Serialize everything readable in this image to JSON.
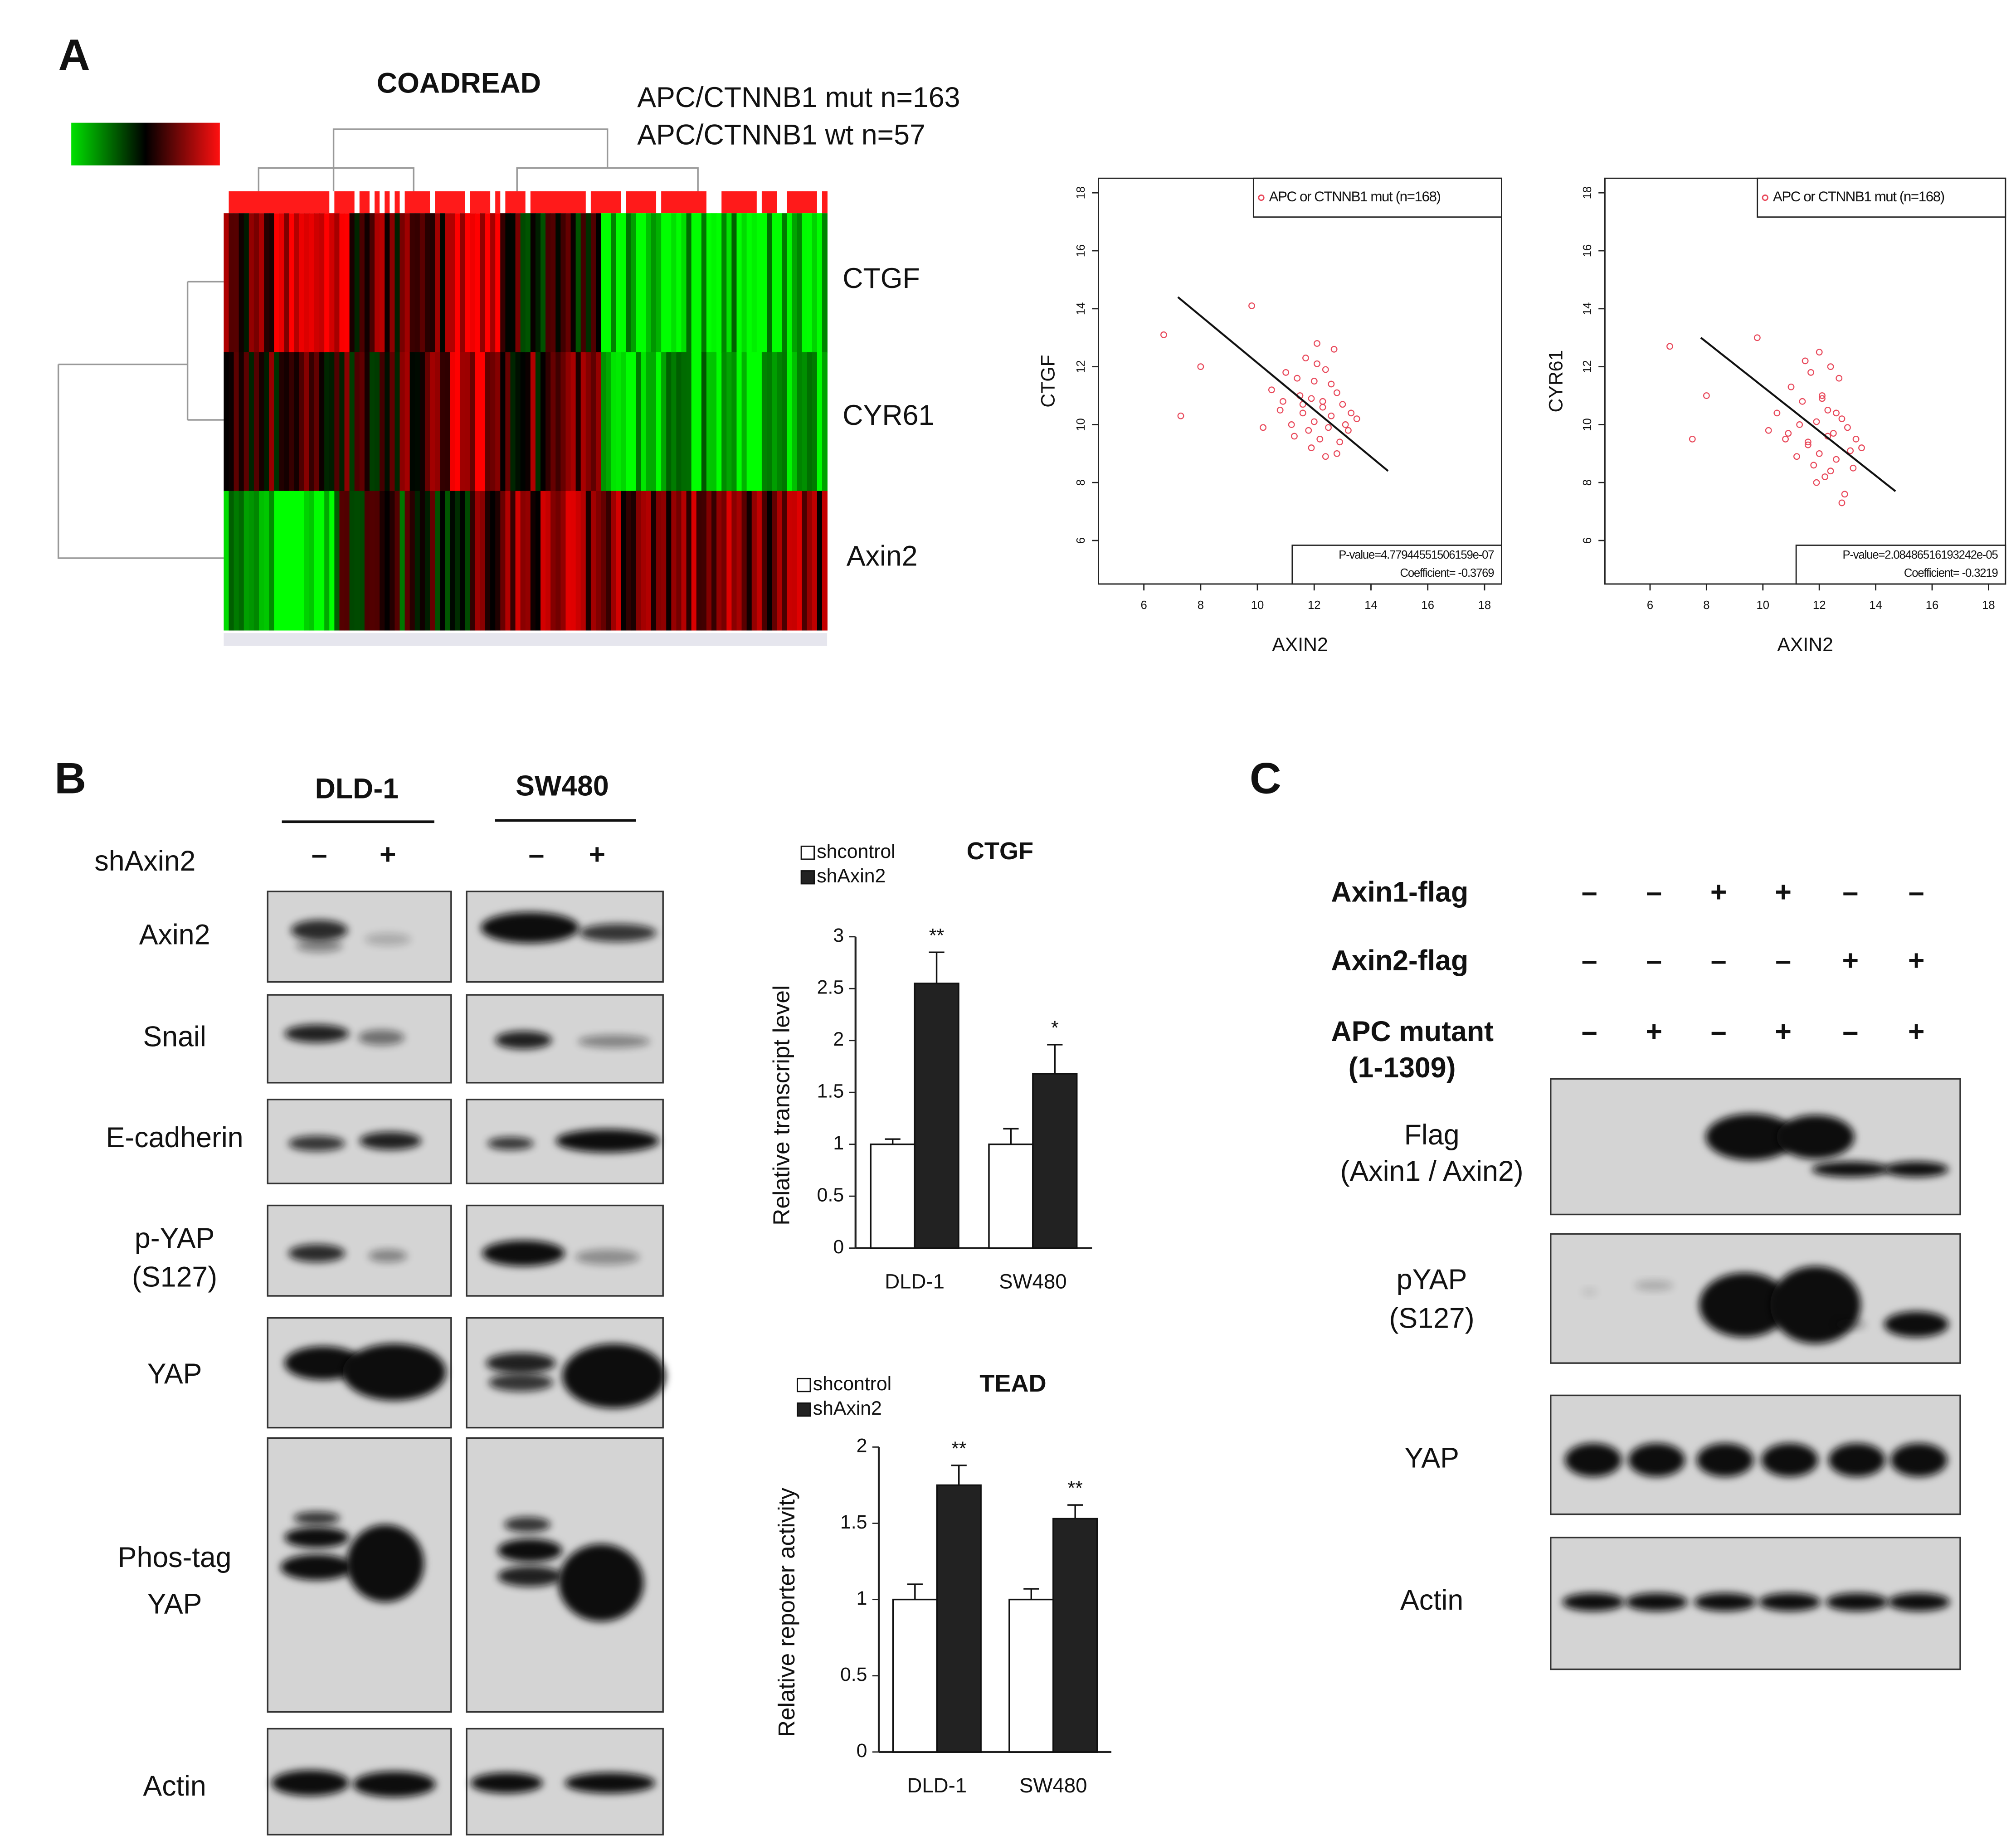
{
  "panel_labels": [
    "A",
    "B",
    "C"
  ],
  "heatmap": {
    "title": "COADREAD",
    "groups": [
      "APC/CTNNB1 mut n=163",
      "APC/CTNNB1 wt n=57"
    ],
    "rows": [
      "CTGF",
      "CYR61",
      "Axin2"
    ]
  },
  "blot_B": {
    "cell_lines": [
      "DLD-1",
      "SW480"
    ],
    "treatment": "shAxin2",
    "signs": [
      "–",
      "+",
      "–",
      "+"
    ],
    "rows": [
      [
        "Axin2"
      ],
      [
        "Snail"
      ],
      [
        "E-cadherin"
      ],
      [
        "p-YAP",
        "(S127)"
      ],
      [
        "YAP"
      ],
      [
        "Phos-tag",
        "YAP"
      ],
      [
        "Actin"
      ]
    ]
  },
  "blot_C": {
    "conditions": [
      {
        "label": [
          "Axin1-flag"
        ],
        "signs": [
          "–",
          "–",
          "+",
          "+",
          "–",
          "–"
        ]
      },
      {
        "label": [
          "Axin2-flag"
        ],
        "signs": [
          "–",
          "–",
          "–",
          "–",
          "+",
          "+"
        ]
      },
      {
        "label": [
          "APC mutant",
          "(1-1309)"
        ],
        "signs": [
          "–",
          "+",
          "–",
          "+",
          "–",
          "+"
        ]
      }
    ],
    "rows": [
      [
        "Flag",
        "(Axin1 / Axin2)"
      ],
      [
        "pYAP",
        "(S127)"
      ],
      [
        "YAP"
      ],
      [
        "Actin"
      ]
    ]
  },
  "chart_data": [
    {
      "type": "scatter",
      "xlabel": "AXIN2",
      "ylabel": "CTGF",
      "legend": "APC or CTNNB1 mut (n=168)",
      "stats": [
        "P-value=4.77944551506159e-07",
        "Coefficient= -0.3769"
      ],
      "color": "#e8485a",
      "x": [
        6.7,
        7.3,
        8.0,
        9.8,
        10.2,
        10.5,
        10.8,
        11.0,
        11.2,
        11.3,
        11.5,
        11.6,
        11.7,
        11.8,
        11.9,
        12.0,
        12.0,
        12.1,
        12.2,
        12.3,
        12.4,
        12.5,
        12.6,
        12.7,
        12.8,
        12.9,
        13.0,
        13.1,
        13.3,
        13.5,
        11.4,
        11.9,
        12.3,
        12.8,
        12.1,
        11.6,
        12.6,
        13.2,
        10.9,
        12.4
      ],
      "y": [
        13.1,
        10.3,
        12.0,
        14.1,
        9.9,
        11.2,
        10.5,
        11.8,
        10.0,
        9.6,
        11.0,
        10.4,
        12.3,
        9.8,
        10.9,
        11.5,
        10.1,
        12.8,
        9.5,
        10.6,
        11.9,
        9.9,
        10.3,
        12.6,
        11.1,
        9.4,
        10.7,
        10.0,
        10.4,
        10.2,
        11.6,
        9.2,
        10.8,
        9.0,
        12.1,
        10.7,
        11.4,
        9.8,
        10.8,
        8.9
      ],
      "trend_line": {
        "x": [
          7.2,
          14.6
        ],
        "y": [
          14.4,
          8.4
        ]
      },
      "xlim": [
        4.4,
        18.6
      ],
      "ylim": [
        4.5,
        18.5
      ],
      "xticks": [
        6,
        8,
        10,
        12,
        14,
        16,
        18
      ],
      "yticks": [
        6,
        8,
        10,
        12,
        14,
        16,
        18
      ]
    },
    {
      "type": "scatter",
      "xlabel": "AXIN2",
      "ylabel": "CYR61",
      "legend": "APC or CTNNB1 mut (n=168)",
      "stats": [
        "P-value=2.08486516193242e-05",
        "Coefficient= -0.3219"
      ],
      "color": "#e8485a",
      "x": [
        6.7,
        7.5,
        8.0,
        9.8,
        10.2,
        10.5,
        10.8,
        11.0,
        11.2,
        11.3,
        11.5,
        11.6,
        11.7,
        11.8,
        11.9,
        12.0,
        12.0,
        12.1,
        12.2,
        12.3,
        12.4,
        12.5,
        12.6,
        12.7,
        12.8,
        12.9,
        13.0,
        13.1,
        13.3,
        13.5,
        11.4,
        11.9,
        12.3,
        12.8,
        12.1,
        11.6,
        12.6,
        13.2,
        10.9,
        12.4
      ],
      "y": [
        12.7,
        9.5,
        11.0,
        13.0,
        9.8,
        10.4,
        9.5,
        11.3,
        8.9,
        10.0,
        12.2,
        9.3,
        11.8,
        8.6,
        10.1,
        12.5,
        9.0,
        11.0,
        8.2,
        10.5,
        12.0,
        9.7,
        8.8,
        11.6,
        10.2,
        7.6,
        9.9,
        9.1,
        9.5,
        9.2,
        10.8,
        8.0,
        9.6,
        7.3,
        10.9,
        9.4,
        10.4,
        8.5,
        9.7,
        8.4
      ],
      "trend_line": {
        "x": [
          7.8,
          14.7
        ],
        "y": [
          13.0,
          7.7
        ]
      },
      "xlim": [
        4.4,
        18.6
      ],
      "ylim": [
        4.5,
        18.5
      ],
      "xticks": [
        6,
        8,
        10,
        12,
        14,
        16,
        18
      ],
      "yticks": [
        6,
        8,
        10,
        12,
        14,
        16,
        18
      ]
    },
    {
      "type": "bar",
      "title": "CTGF",
      "ylabel": "Relative transcript level",
      "categories": [
        "DLD-1",
        "SW480"
      ],
      "series": [
        {
          "name": "shcontrol",
          "color": "#ffffff",
          "values": [
            1,
            1
          ],
          "errors": [
            0.05,
            0.15
          ]
        },
        {
          "name": "shAxin2",
          "color": "#222222",
          "values": [
            2.55,
            1.68
          ],
          "errors": [
            0.3,
            0.28
          ]
        }
      ],
      "significance": [
        "**",
        "*"
      ],
      "ylim": [
        0,
        3
      ],
      "yticks": [
        0,
        0.5,
        1,
        1.5,
        2,
        2.5,
        3
      ]
    },
    {
      "type": "bar",
      "title": "TEAD",
      "ylabel": "Relative reporter activity",
      "categories": [
        "DLD-1",
        "SW480"
      ],
      "series": [
        {
          "name": "shcontrol",
          "color": "#ffffff",
          "values": [
            1,
            1
          ],
          "errors": [
            0.1,
            0.07
          ]
        },
        {
          "name": "shAxin2",
          "color": "#222222",
          "values": [
            1.75,
            1.53
          ],
          "errors": [
            0.13,
            0.09
          ]
        }
      ],
      "significance": [
        "**",
        "**"
      ],
      "ylim": [
        0,
        2
      ],
      "yticks": [
        0,
        0.5,
        1,
        1.5,
        2
      ]
    }
  ]
}
